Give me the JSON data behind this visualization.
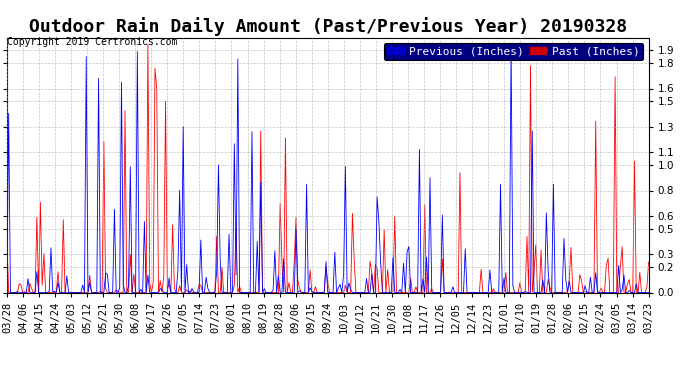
{
  "title": "Outdoor Rain Daily Amount (Past/Previous Year) 20190328",
  "copyright": "Copyright 2019 Certronics.com",
  "legend_previous": "Previous (Inches)",
  "legend_past": "Past (Inches)",
  "legend_prev_color": "#0000ff",
  "legend_past_color": "#ff0000",
  "legend_prev_bg": "#0000cc",
  "legend_past_bg": "#cc0000",
  "yticks": [
    0.0,
    0.2,
    0.3,
    0.5,
    0.6,
    0.8,
    1.0,
    1.1,
    1.3,
    1.5,
    1.6,
    1.8,
    1.9
  ],
  "ymax": 2.0,
  "ymin": 0.0,
  "background_color": "#ffffff",
  "plot_bg_color": "#ffffff",
  "grid_color": "#aaaaaa",
  "x_labels": [
    "03/28",
    "04/06",
    "04/15",
    "04/24",
    "05/03",
    "05/12",
    "05/21",
    "05/30",
    "06/08",
    "06/17",
    "06/26",
    "07/05",
    "07/14",
    "07/23",
    "08/01",
    "08/10",
    "08/19",
    "08/28",
    "09/06",
    "09/15",
    "09/24",
    "10/03",
    "10/12",
    "10/21",
    "10/30",
    "11/08",
    "11/17",
    "11/26",
    "12/05",
    "12/14",
    "12/23",
    "01/01",
    "01/10",
    "01/19",
    "01/28",
    "02/06",
    "02/15",
    "02/24",
    "03/05",
    "03/14",
    "03/23"
  ],
  "title_fontsize": 13,
  "copyright_fontsize": 7,
  "axis_fontsize": 7.5,
  "legend_fontsize": 8
}
